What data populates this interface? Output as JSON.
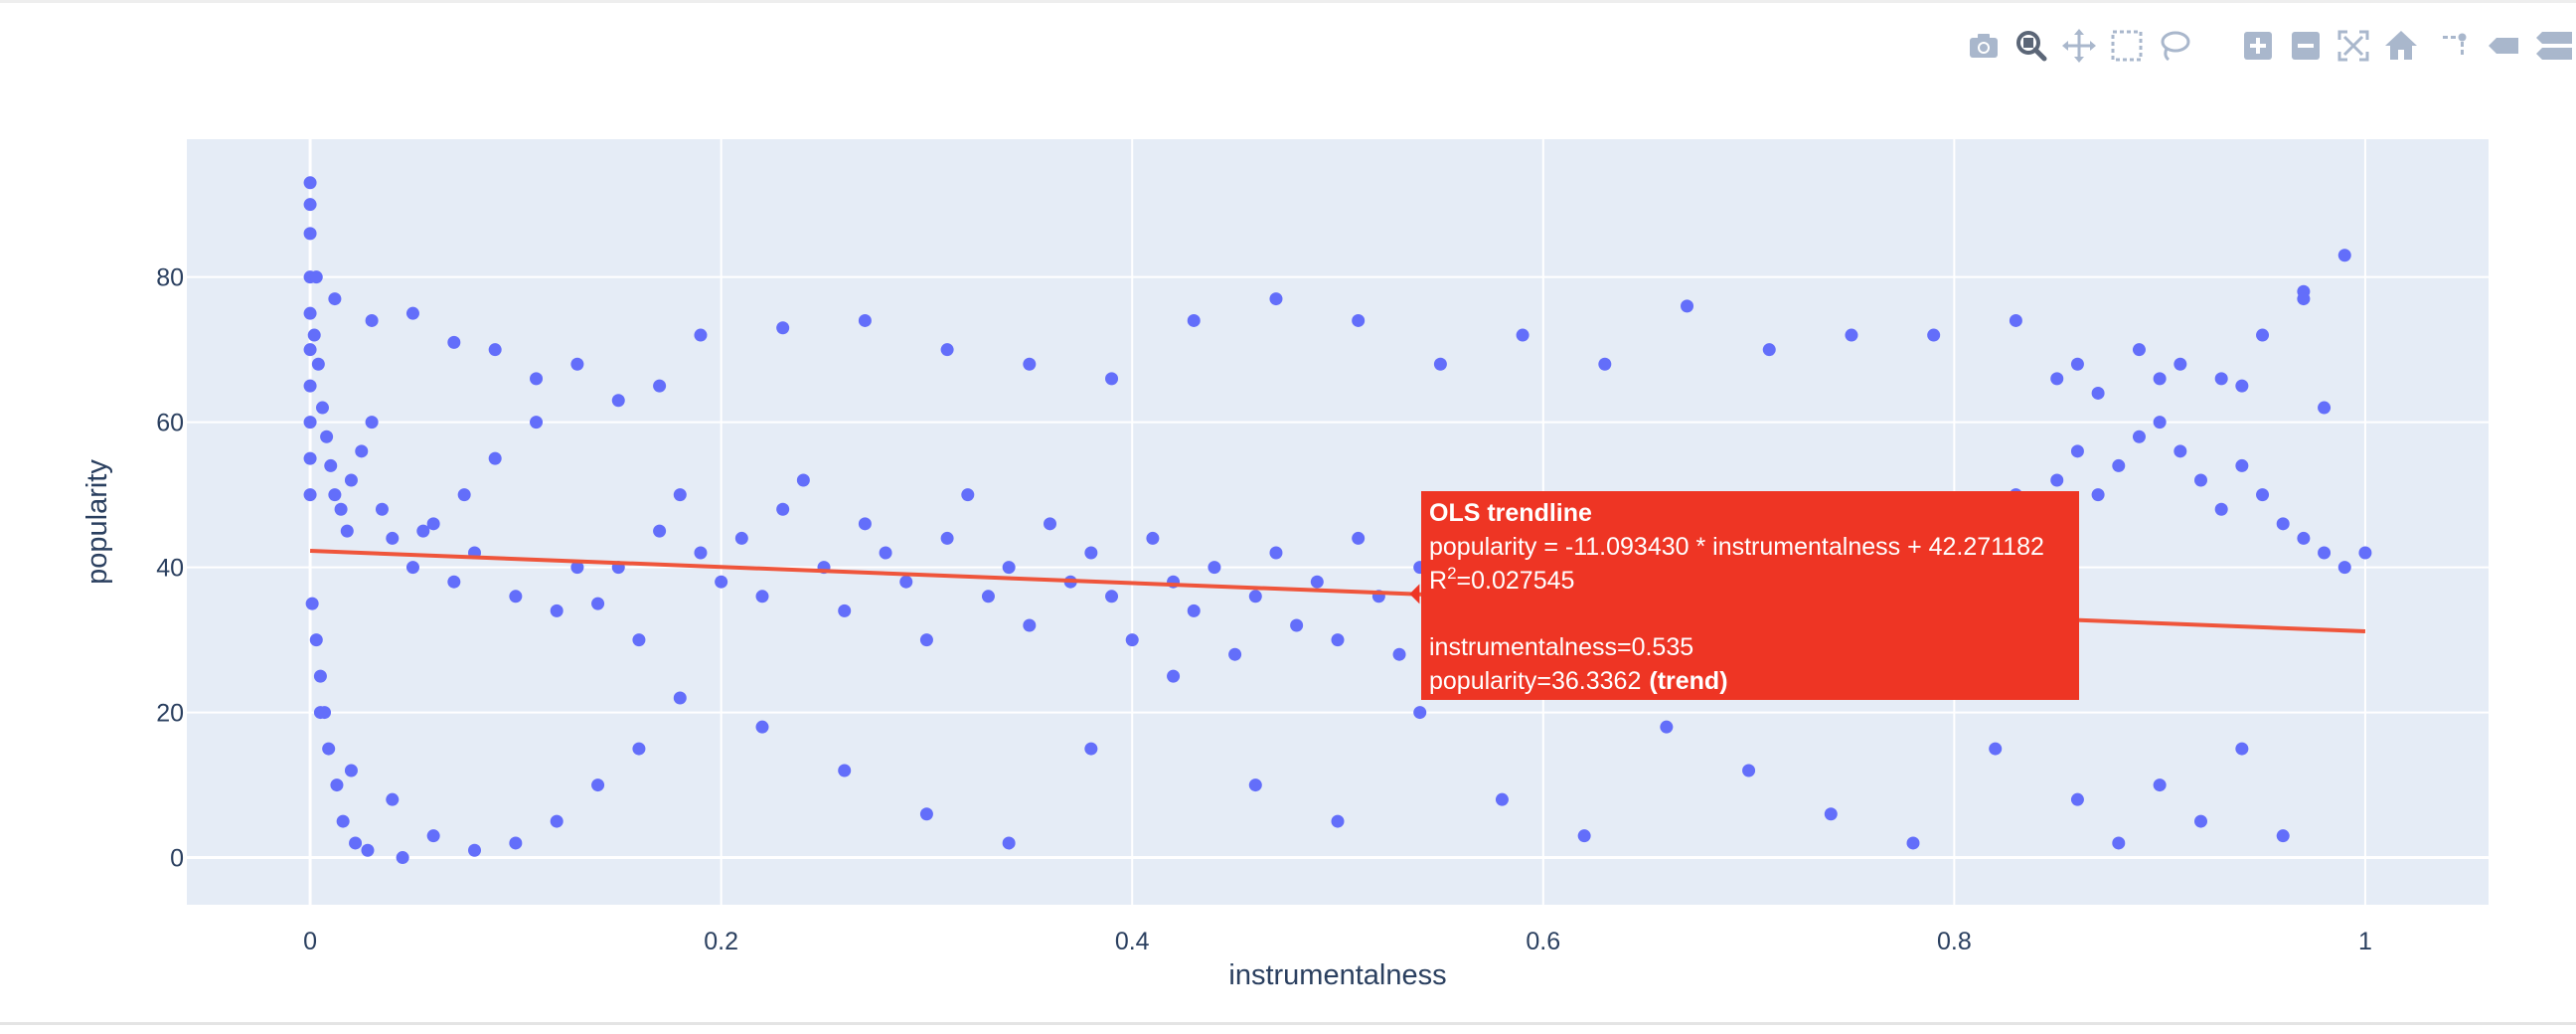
{
  "modebar": {
    "buttons": [
      {
        "name": "download-plot-button",
        "icon": "camera-icon"
      },
      {
        "name": "zoom-button",
        "icon": "zoom-icon",
        "active": true
      },
      {
        "name": "pan-button",
        "icon": "pan-icon"
      },
      {
        "name": "box-select-button",
        "icon": "box-select-icon"
      },
      {
        "name": "lasso-select-button",
        "icon": "lasso-icon"
      },
      {
        "name": "zoom-in-button",
        "icon": "plus-icon"
      },
      {
        "name": "zoom-out-button",
        "icon": "minus-icon"
      },
      {
        "name": "autoscale-button",
        "icon": "autoscale-icon"
      },
      {
        "name": "reset-axes-button",
        "icon": "home-icon"
      },
      {
        "name": "toggle-spike-lines-button",
        "icon": "spike-icon"
      },
      {
        "name": "hover-closest-button",
        "icon": "hover-closest-icon"
      },
      {
        "name": "hover-compare-button",
        "icon": "hover-compare-icon"
      }
    ],
    "icon_color": "#a9b7cc",
    "active_color": "#5b6677"
  },
  "chart_data": {
    "type": "scatter",
    "title": "",
    "xlabel": "instrumentalness",
    "ylabel": "popularity",
    "xlim": [
      -0.06,
      1.06
    ],
    "ylim": [
      -6.5,
      99
    ],
    "xticks": [
      0,
      0.2,
      0.4,
      0.6,
      0.8,
      1
    ],
    "xtick_labels": [
      "0",
      "0.2",
      "0.4",
      "0.6",
      "0.8",
      "1"
    ],
    "yticks": [
      0,
      20,
      40,
      60,
      80
    ],
    "ytick_labels": [
      "0",
      "20",
      "40",
      "60",
      "80"
    ],
    "grid": true,
    "plot_background": "#e5ecf6",
    "marker_color": "#636efa",
    "trendline_color": "#ef553b",
    "series": [
      {
        "name": "points",
        "x": [
          0,
          0,
          0,
          0,
          0,
          0,
          0,
          0,
          0,
          0,
          0.002,
          0.004,
          0.006,
          0.008,
          0.01,
          0.012,
          0.015,
          0.018,
          0.02,
          0.025,
          0.03,
          0.035,
          0.04,
          0.05,
          0.06,
          0.07,
          0.08,
          0.1,
          0.12,
          0.15,
          0.001,
          0.003,
          0.005,
          0.007,
          0.009,
          0.013,
          0.016,
          0.022,
          0.028,
          0.045,
          0.055,
          0.075,
          0.09,
          0.11,
          0.13,
          0.14,
          0.16,
          0.17,
          0.18,
          0.19,
          0.2,
          0.21,
          0.22,
          0.23,
          0.24,
          0.25,
          0.26,
          0.27,
          0.28,
          0.29,
          0.3,
          0.31,
          0.32,
          0.33,
          0.34,
          0.35,
          0.36,
          0.37,
          0.38,
          0.39,
          0.4,
          0.41,
          0.42,
          0.43,
          0.44,
          0.45,
          0.46,
          0.47,
          0.48,
          0.49,
          0.5,
          0.51,
          0.52,
          0.53,
          0.54,
          0.55,
          0.56,
          0.57,
          0.58,
          0.59,
          0.6,
          0.61,
          0.62,
          0.63,
          0.64,
          0.65,
          0.66,
          0.67,
          0.68,
          0.69,
          0.7,
          0.71,
          0.72,
          0.73,
          0.74,
          0.75,
          0.76,
          0.77,
          0.78,
          0.79,
          0.8,
          0.81,
          0.82,
          0.83,
          0.84,
          0.85,
          0.86,
          0.87,
          0.88,
          0.89,
          0.9,
          0.91,
          0.92,
          0.93,
          0.94,
          0.95,
          0.96,
          0.97,
          0.98,
          0.99,
          1,
          0.005,
          0.02,
          0.04,
          0.06,
          0.08,
          0.1,
          0.12,
          0.14,
          0.16,
          0.18,
          0.22,
          0.26,
          0.3,
          0.34,
          0.38,
          0.42,
          0.46,
          0.5,
          0.54,
          0.58,
          0.62,
          0.66,
          0.7,
          0.74,
          0.78,
          0.82,
          0.86,
          0.88,
          0.9,
          0.92,
          0.94,
          0.96,
          0.98,
          0.85,
          0.87,
          0.89,
          0.91,
          0.93,
          0.95,
          0.97,
          0.99,
          0.003,
          0.012,
          0.03,
          0.05,
          0.07,
          0.09,
          0.11,
          0.13,
          0.15,
          0.17,
          0.19,
          0.23,
          0.27,
          0.31,
          0.35,
          0.39,
          0.43,
          0.47,
          0.51,
          0.55,
          0.59,
          0.63,
          0.67,
          0.71,
          0.75,
          0.79,
          0.83,
          0.86,
          0.9,
          0.94,
          0.97
        ],
        "y": [
          93,
          90,
          86,
          80,
          75,
          70,
          65,
          60,
          55,
          50,
          72,
          68,
          62,
          58,
          54,
          50,
          48,
          45,
          52,
          56,
          60,
          48,
          44,
          40,
          46,
          38,
          42,
          36,
          34,
          40,
          35,
          30,
          25,
          20,
          15,
          10,
          5,
          2,
          1,
          0,
          45,
          50,
          55,
          60,
          40,
          35,
          30,
          45,
          50,
          42,
          38,
          44,
          36,
          48,
          52,
          40,
          34,
          46,
          42,
          38,
          30,
          44,
          50,
          36,
          40,
          32,
          46,
          38,
          42,
          36,
          30,
          44,
          38,
          34,
          40,
          28,
          36,
          42,
          32,
          38,
          30,
          44,
          36,
          28,
          40,
          34,
          30,
          38,
          42,
          32,
          28,
          36,
          40,
          30,
          34,
          26,
          32,
          38,
          28,
          36,
          30,
          24,
          34,
          28,
          32,
          36,
          30,
          26,
          34,
          38,
          40,
          44,
          48,
          50,
          46,
          52,
          56,
          50,
          54,
          58,
          60,
          56,
          52,
          48,
          54,
          50,
          46,
          44,
          42,
          40,
          42,
          20,
          12,
          8,
          3,
          1,
          2,
          5,
          10,
          15,
          22,
          18,
          12,
          6,
          2,
          15,
          25,
          10,
          5,
          20,
          8,
          3,
          18,
          12,
          6,
          2,
          15,
          8,
          2,
          10,
          5,
          15,
          3,
          62,
          66,
          64,
          70,
          68,
          66,
          72,
          78,
          83,
          80,
          77,
          74,
          75,
          71,
          70,
          66,
          68,
          63,
          65,
          72,
          73,
          74,
          70,
          68,
          66,
          74,
          77,
          74,
          68,
          72,
          68,
          76,
          70,
          72,
          72,
          74,
          68,
          66,
          65,
          77
        ]
      },
      {
        "name": "OLS trendline",
        "type": "line",
        "x": [
          0,
          1
        ],
        "y": [
          42.271182,
          31.177752
        ]
      }
    ],
    "hover": {
      "series_name": "OLS trendline",
      "equation": "popularity = -11.093430 * instrumentalness + 42.271182",
      "r2_label": "R",
      "r2_sup": "2",
      "r2_value": "=0.027545",
      "x_line": "instrumentalness=0.535",
      "y_line": "popularity=36.3362",
      "y_suffix": "(trend)",
      "point": {
        "x": 0.535,
        "y": 36.3362
      },
      "background": "#ee3524"
    }
  }
}
